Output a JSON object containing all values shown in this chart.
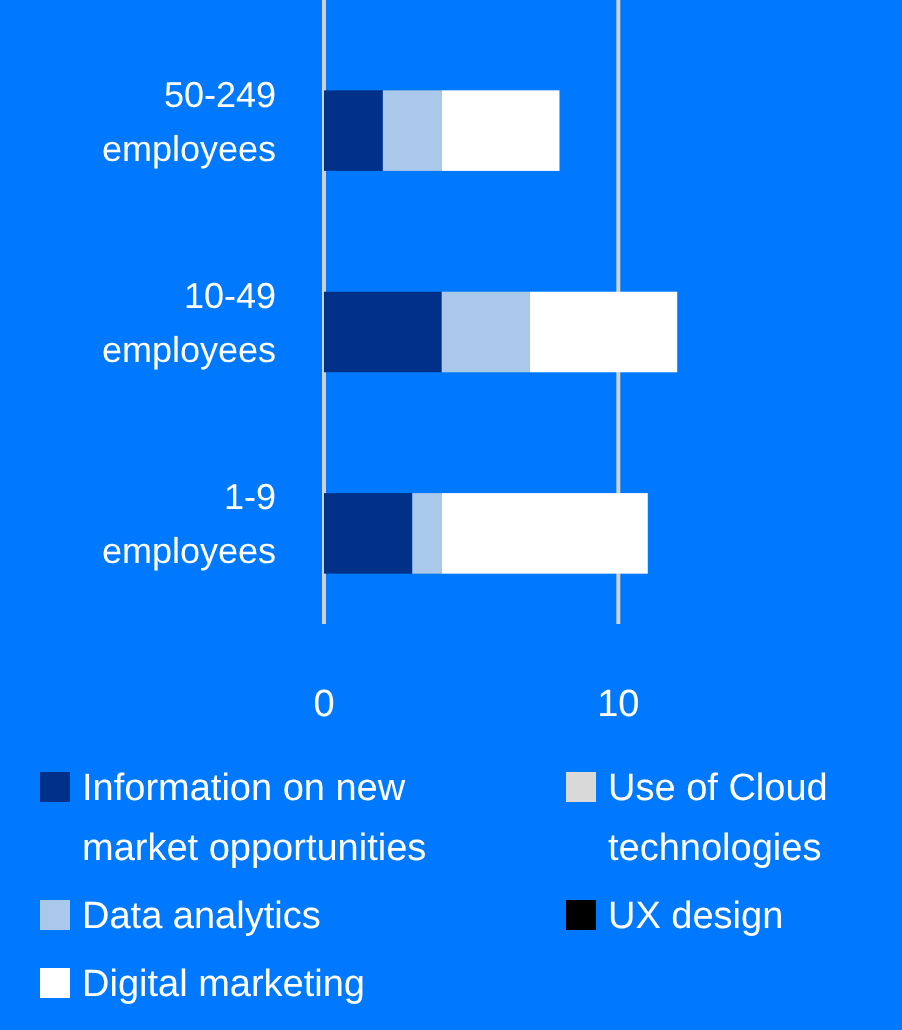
{
  "chart_data": {
    "type": "bar",
    "orientation": "horizontal",
    "stacked": true,
    "categories": [
      "50-249 employees",
      "10-49 employees",
      "1-9 employees"
    ],
    "series": [
      {
        "name": "Information on new market opportunities",
        "color": "#003087",
        "values": [
          2,
          4,
          3
        ]
      },
      {
        "name": "Use of Cloud technologies",
        "color": "#d9d9d9",
        "values": [
          0,
          0,
          0
        ]
      },
      {
        "name": "Data analytics",
        "color": "#a9c8ea",
        "values": [
          2,
          3,
          1
        ]
      },
      {
        "name": "UX design",
        "color": "#000000",
        "values": [
          0,
          0,
          0
        ]
      },
      {
        "name": "Digital marketing",
        "color": "#ffffff",
        "values": [
          4,
          5,
          7
        ]
      }
    ],
    "xlim": [
      0,
      12
    ],
    "xticks": [
      0,
      10
    ],
    "grid": "x",
    "legend": "bottom"
  }
}
